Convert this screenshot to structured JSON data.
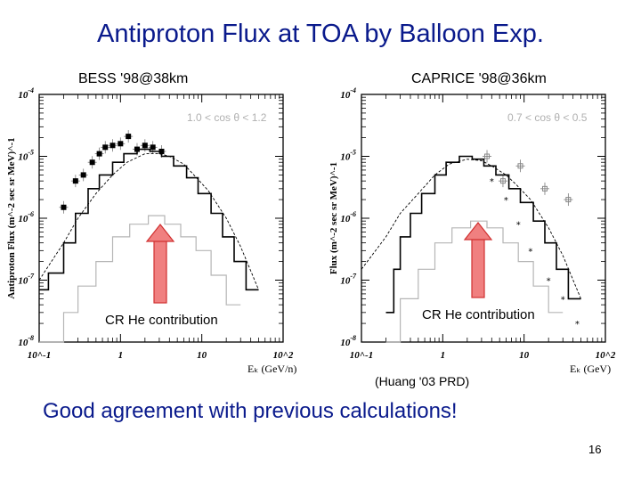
{
  "title": "Antiproton Flux at TOA by Balloon Exp.",
  "conclusion": "Good agreement with previous calculations!",
  "reference": "(Huang '03 PRD)",
  "page_number": "16",
  "chart_data": [
    {
      "type": "line",
      "title": "BESS '98@38km",
      "xlabel": "E_k (GeV/n)",
      "ylabel": "Antiproton Flux (m^-2 sec sr MeV)^-1",
      "xscale": "log",
      "yscale": "log",
      "xlim": [
        0.1,
        100
      ],
      "ylim": [
        1e-08,
        0.0001
      ],
      "x_ticks": [
        "10^-1",
        "1",
        "10",
        "10^2"
      ],
      "y_ticks": [
        "10^-8",
        "10^-7",
        "10^-6",
        "10^-5",
        "10^-4"
      ],
      "angle_label": "1.0 < cos θ < 1.2",
      "annotation": "CR He contribution",
      "series": [
        {
          "role": "measured",
          "style": "points",
          "x": [
            0.2,
            0.28,
            0.35,
            0.45,
            0.55,
            0.65,
            0.8,
            1.0,
            1.25,
            1.6,
            2.0,
            2.5,
            3.2
          ],
          "y": [
            1.5e-06,
            4e-06,
            5e-06,
            8e-06,
            1.1e-05,
            1.4e-05,
            1.5e-05,
            1.6e-05,
            2.1e-05,
            1.3e-05,
            1.5e-05,
            1.4e-05,
            1.2e-05
          ]
        },
        {
          "role": "total-calc",
          "style": "step",
          "x": [
            0.1,
            0.13,
            0.2,
            0.28,
            0.4,
            0.55,
            0.8,
            1.1,
            1.6,
            2.3,
            3.2,
            4.5,
            6.5,
            9,
            13,
            18,
            25,
            35,
            50
          ],
          "y": [
            7e-08,
            1.3e-07,
            4e-07,
            1.2e-06,
            3e-06,
            5e-06,
            8e-06,
            1.1e-05,
            1.3e-05,
            1.2e-05,
            1e-05,
            7e-06,
            4.5e-06,
            2.5e-06,
            1.2e-06,
            5e-07,
            2e-07,
            7e-08,
            2e-08
          ]
        },
        {
          "role": "He-component",
          "style": "step",
          "x": [
            0.1,
            0.2,
            0.3,
            0.5,
            0.8,
            1.3,
            2.2,
            3.5,
            5.5,
            8.5,
            13,
            20,
            30
          ],
          "y": [
            1e-08,
            3e-08,
            8e-08,
            2e-07,
            5e-07,
            8e-07,
            1.1e-06,
            8e-07,
            5e-07,
            3e-07,
            1.2e-07,
            4e-08,
            1.2e-08
          ]
        },
        {
          "role": "calculation",
          "style": "dashed",
          "x": [
            0.1,
            0.2,
            0.3,
            0.5,
            0.8,
            1.2,
            2,
            3,
            4,
            6,
            8,
            12,
            20,
            30,
            50
          ],
          "y": [
            1e-07,
            4e-07,
            1e-06,
            2.5e-06,
            5e-06,
            8e-06,
            1.1e-05,
            1.1e-05,
            1e-05,
            7.5e-06,
            5e-06,
            2.8e-06,
            1e-06,
            3.5e-07,
            7e-08
          ]
        }
      ]
    },
    {
      "type": "line",
      "title": "CAPRICE '98@36km",
      "xlabel": "E_k (GeV)",
      "ylabel": "Flux (m^-2 sec sr MeV)^-1",
      "xscale": "log",
      "yscale": "log",
      "xlim": [
        0.1,
        100
      ],
      "ylim": [
        1e-08,
        0.0001
      ],
      "x_ticks": [
        "10^-1",
        "1",
        "10",
        "10^2"
      ],
      "y_ticks": [
        "10^-8",
        "10^-7",
        "10^-6",
        "10^-5",
        "10^-4"
      ],
      "angle_label": "0.7 < cos θ < 0.5",
      "annotation": "CR He contribution",
      "series": [
        {
          "role": "measured",
          "style": "points",
          "x": [
            3.5,
            5.5,
            9,
            18,
            35
          ],
          "y": [
            1e-05,
            4e-06,
            7e-06,
            3e-06,
            2e-06
          ]
        },
        {
          "role": "total-calc",
          "style": "step",
          "x": [
            0.2,
            0.25,
            0.3,
            0.4,
            0.55,
            0.8,
            1.1,
            1.6,
            2.3,
            3.2,
            4.5,
            6.5,
            9,
            13,
            18,
            25,
            35,
            50
          ],
          "y": [
            3e-08,
            1.5e-07,
            5e-07,
            1.2e-06,
            2.5e-06,
            5e-06,
            8e-06,
            1e-05,
            9e-06,
            7e-06,
            5e-06,
            3e-06,
            1.8e-06,
            9e-07,
            4e-07,
            1.5e-07,
            5e-08,
            1.5e-08
          ]
        },
        {
          "role": "He-component",
          "style": "step",
          "x": [
            0.2,
            0.3,
            0.5,
            0.8,
            1.3,
            2.2,
            3.5,
            5.5,
            8.5,
            13,
            20,
            30
          ],
          "y": [
            1e-08,
            5e-08,
            1.5e-07,
            4e-07,
            7e-07,
            9e-07,
            7e-07,
            4e-07,
            2e-07,
            8e-08,
            3e-08,
            1e-08
          ]
        },
        {
          "role": "calculation",
          "style": "dashed",
          "x": [
            0.1,
            0.2,
            0.3,
            0.5,
            0.8,
            1.2,
            2,
            3,
            4,
            6,
            8,
            12,
            20,
            30,
            50
          ],
          "y": [
            1.5e-07,
            5e-07,
            1.2e-06,
            2.5e-06,
            5e-06,
            7.5e-06,
            9e-06,
            8.5e-06,
            7e-06,
            5e-06,
            3.5e-06,
            2e-06,
            7e-07,
            2.5e-07,
            5e-08
          ]
        },
        {
          "role": "star-points",
          "style": "stars",
          "x": [
            4,
            6,
            8.5,
            12,
            20,
            30,
            45
          ],
          "y": [
            4e-06,
            2e-06,
            8e-07,
            3e-07,
            1e-07,
            5e-08,
            2e-08
          ]
        }
      ]
    }
  ]
}
